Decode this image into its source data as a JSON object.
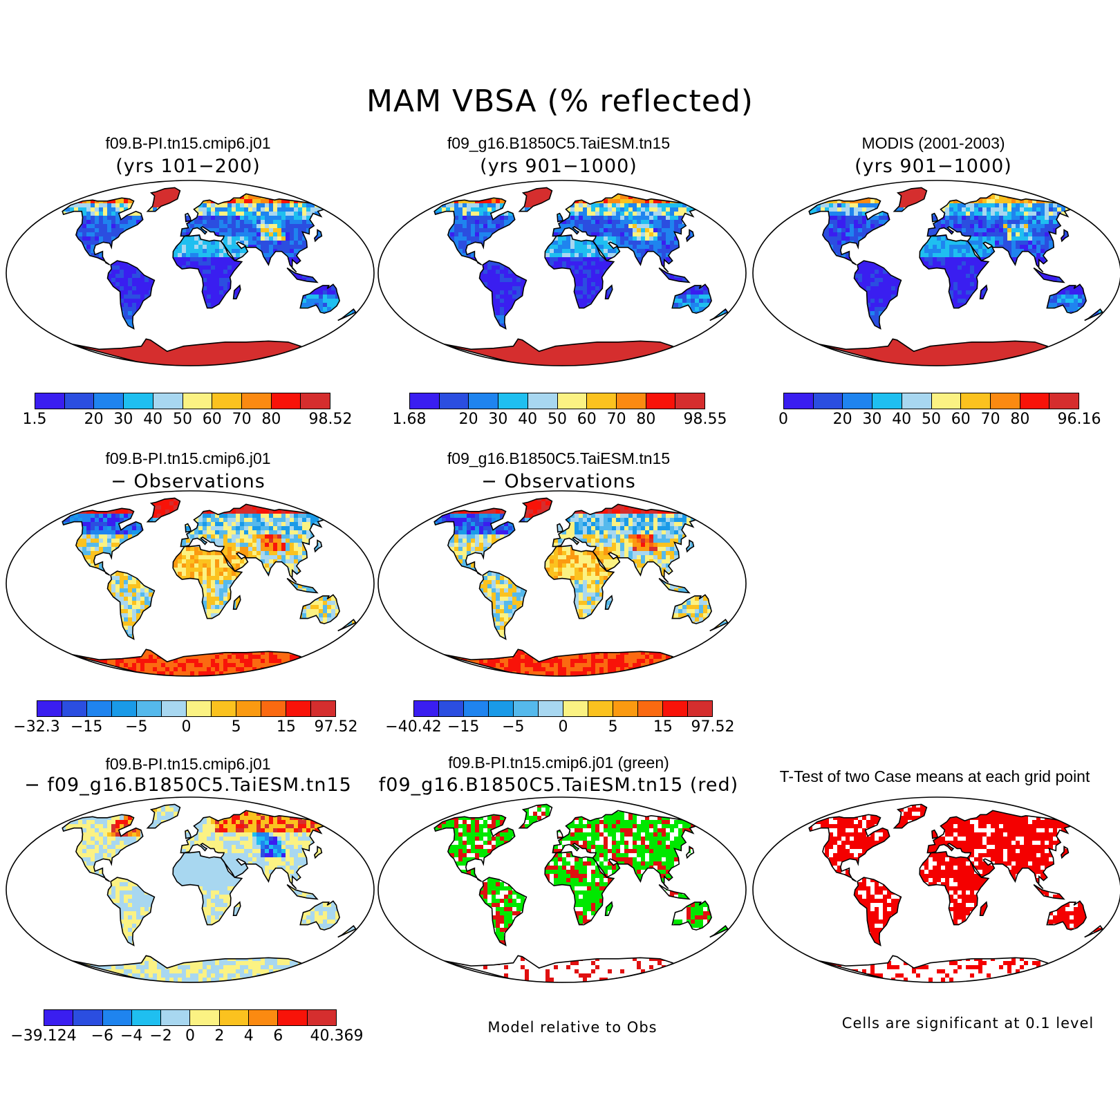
{
  "figure": {
    "title": "MAM VBSA (% reflected)"
  },
  "panels": {
    "case1": {
      "title": "f09.B-PI.tn15.cmip6.j01",
      "subtitle": "(yrs 101−200)"
    },
    "case2": {
      "title": "f09_g16.B1850C5.TaiESM.tn15",
      "subtitle": "(yrs 901−1000)"
    },
    "obs": {
      "title": "MODIS (2001-2003)",
      "subtitle": "(yrs 901−1000)"
    },
    "diff1": {
      "title": "f09.B-PI.tn15.cmip6.j01",
      "subtitle": "− Observations"
    },
    "diff2": {
      "title": "f09_g16.B1850C5.TaiESM.tn15",
      "subtitle": "− Observations"
    },
    "casediff": {
      "title": "f09.B-PI.tn15.cmip6.j01",
      "subtitle": "− f09_g16.B1850C5.TaiESM.tn15"
    },
    "compare": {
      "title": "f09.B-PI.tn15.cmip6.j01 (green)",
      "subtitle": "f09_g16.B1850C5.TaiESM.tn15 (red)",
      "note": "Model relative to Obs"
    },
    "ttest": {
      "title": "T-Test of two Case means at each grid point",
      "note": "Cells are significant at 0.1 level"
    }
  },
  "colorbars": {
    "case1": [
      "1.5",
      "20",
      "30",
      "40",
      "50",
      "60",
      "70",
      "80",
      "98.52"
    ],
    "case2": [
      "1.68",
      "20",
      "30",
      "40",
      "50",
      "60",
      "70",
      "80",
      "98.55"
    ],
    "obs": [
      "0",
      "20",
      "30",
      "40",
      "50",
      "60",
      "70",
      "80",
      "96.16"
    ],
    "diff1": [
      "−32.3",
      "−15",
      "−5",
      "0",
      "5",
      "15",
      "97.52"
    ],
    "diff2": [
      "−40.42",
      "−15",
      "−5",
      "0",
      "5",
      "15",
      "97.52"
    ],
    "casediff": [
      "−39.124",
      "−6",
      "−4",
      "−2",
      "0",
      "2",
      "4",
      "6",
      "40.369"
    ]
  },
  "palettes": {
    "abs": [
      "#3a1ef0",
      "#2b4ee0",
      "#1f84ef",
      "#1fbff0",
      "#a8d7f0",
      "#fbf283",
      "#fbc21f",
      "#fb8a11",
      "#f81309",
      "#d52e2e"
    ],
    "diff": [
      "#3a1ef0",
      "#2b4ee0",
      "#1f84ef",
      "#1a9ae8",
      "#55b9ec",
      "#a8d7f0",
      "#fbf283",
      "#fbc21f",
      "#fb9a11",
      "#fb6a11",
      "#f81309",
      "#d52e2e"
    ],
    "casediff": [
      "#3a1ef0",
      "#2b4ee0",
      "#1f84ef",
      "#1fbff0",
      "#a8d7f0",
      "#fbf283",
      "#fbc21f",
      "#fb8a11",
      "#f81309",
      "#d52e2e"
    ],
    "compare": {
      "case1": "#00e800",
      "case2": "#e01010"
    },
    "ttest": "#f40000"
  }
}
